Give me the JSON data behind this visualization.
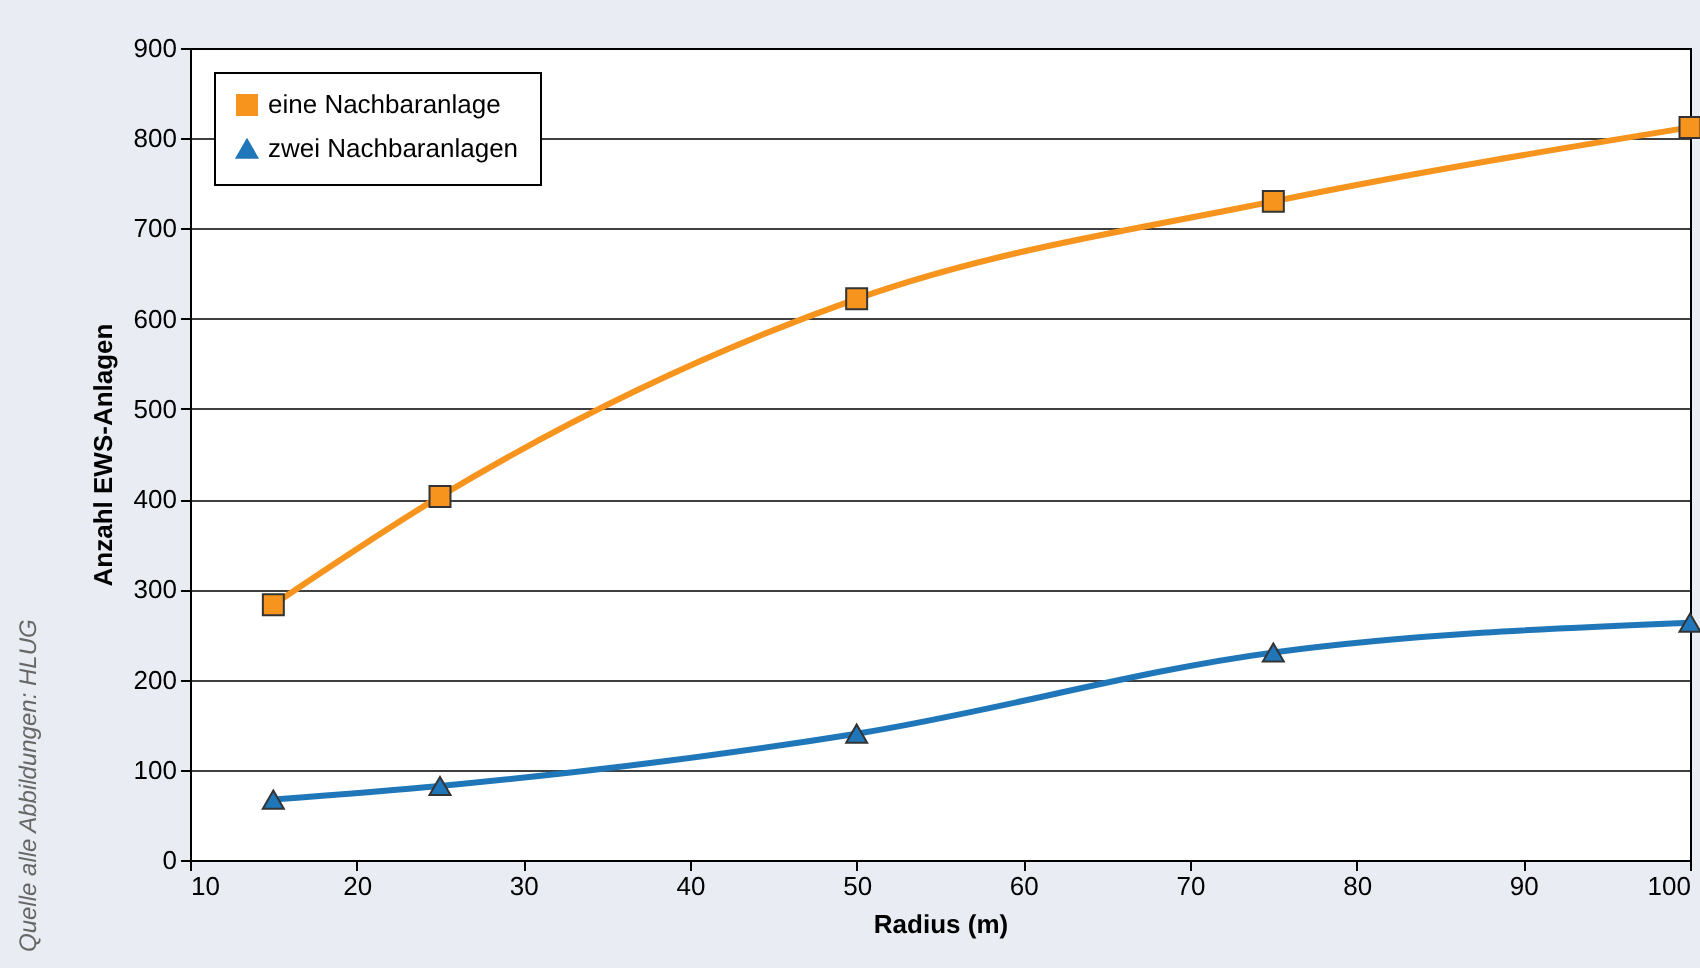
{
  "chart_data": {
    "type": "line",
    "xlabel": "Radius (m)",
    "ylabel": "Anzahl EWS-Anlagen",
    "annotations": [
      "Quelle alle Abbildungen: HLUG"
    ],
    "x": [
      15,
      25,
      50,
      75,
      100
    ],
    "series": [
      {
        "name": "eine Nachbaranlage",
        "color": "#f7941d",
        "values": [
          283,
          403,
          622,
          730,
          812
        ],
        "marker": "square"
      },
      {
        "name": "zwei Nachbaranlagen",
        "color": "#1f77b9",
        "values": [
          67,
          82,
          140,
          230,
          263
        ],
        "marker": "triangle"
      }
    ],
    "xlim": [
      10,
      100
    ],
    "xticks": [
      10,
      20,
      30,
      40,
      50,
      60,
      70,
      80,
      90,
      100
    ],
    "ylim": [
      0,
      900
    ],
    "yticks": [
      0,
      100,
      200,
      300,
      400,
      500,
      600,
      700,
      800,
      900
    ],
    "grid": "y",
    "legend": "top left",
    "line_style": "solid"
  }
}
